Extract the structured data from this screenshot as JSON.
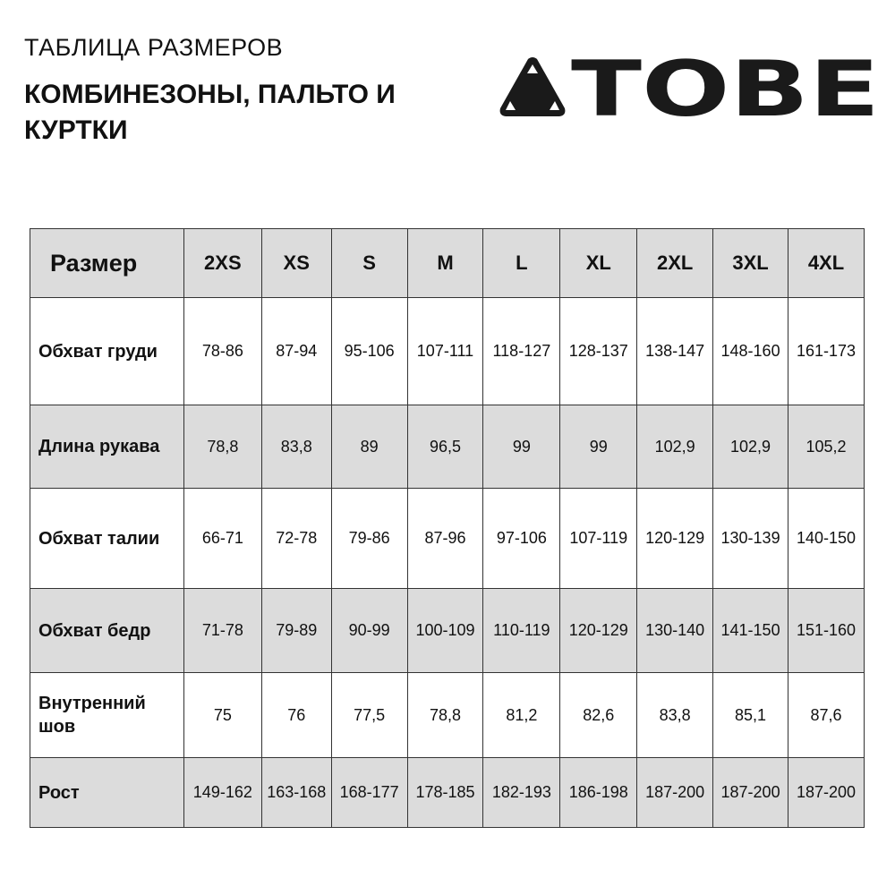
{
  "header": {
    "subtitle": "ТАБЛИЦА РАЗМЕРОВ",
    "title": "КОМБИНЕЗОНЫ, ПАЛЬТО И КУРТКИ"
  },
  "logo": {
    "text": "TOBE"
  },
  "table": {
    "header_label": "Размер",
    "sizes": [
      "2XS",
      "XS",
      "S",
      "M",
      "L",
      "XL",
      "2XL",
      "3XL",
      "4XL"
    ],
    "rows": [
      {
        "label": "Обхват груди",
        "values": [
          "78-86",
          "87-94",
          "95-106",
          "107-111",
          "118-127",
          "128-137",
          "138-147",
          "148-160",
          "161-173"
        ]
      },
      {
        "label": "Длина рукава",
        "values": [
          "78,8",
          "83,8",
          "89",
          "96,5",
          "99",
          "99",
          "102,9",
          "102,9",
          "105,2"
        ]
      },
      {
        "label": "Обхват талии",
        "values": [
          "66-71",
          "72-78",
          "79-86",
          "87-96",
          "97-106",
          "107-119",
          "120-129",
          "130-139",
          "140-150"
        ]
      },
      {
        "label": "Обхват бедр",
        "values": [
          "71-78",
          "79-89",
          "90-99",
          "100-109",
          "110-119",
          "120-129",
          "130-140",
          "141-150",
          "151-160"
        ]
      },
      {
        "label": "Внутренний шов",
        "values": [
          "75",
          "76",
          "77,5",
          "78,8",
          "81,2",
          "82,6",
          "83,8",
          "85,1",
          "87,6"
        ]
      },
      {
        "label": "Рост",
        "values": [
          "149-162",
          "163-168",
          "168-177",
          "178-185",
          "182-193",
          "186-198",
          "187-200",
          "187-200",
          "187-200"
        ]
      }
    ]
  },
  "colors": {
    "shaded_row": "#dcdcdc",
    "border": "#333333"
  }
}
